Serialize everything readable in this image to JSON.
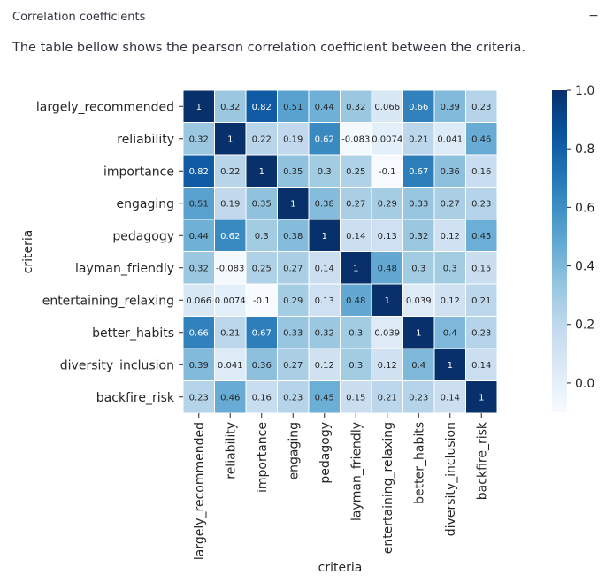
{
  "panel": {
    "title": "Correlation coefficients",
    "toggle_symbol": "−",
    "description": "The table bellow shows the pearson correlation coefficient between the criteria."
  },
  "chart_data": {
    "type": "heatmap",
    "title": "",
    "xlabel": "criteria",
    "ylabel": "criteria",
    "categories": [
      "largely_recommended",
      "reliability",
      "importance",
      "engaging",
      "pedagogy",
      "layman_friendly",
      "entertaining_relaxing",
      "better_habits",
      "diversity_inclusion",
      "backfire_risk"
    ],
    "values": [
      [
        1,
        0.32,
        0.82,
        0.51,
        0.44,
        0.32,
        0.066,
        0.66,
        0.39,
        0.23
      ],
      [
        0.32,
        1,
        0.22,
        0.19,
        0.62,
        -0.083,
        0.0074,
        0.21,
        0.041,
        0.46
      ],
      [
        0.82,
        0.22,
        1,
        0.35,
        0.3,
        0.25,
        -0.1,
        0.67,
        0.36,
        0.16
      ],
      [
        0.51,
        0.19,
        0.35,
        1,
        0.38,
        0.27,
        0.29,
        0.33,
        0.27,
        0.23
      ],
      [
        0.44,
        0.62,
        0.3,
        0.38,
        1,
        0.14,
        0.13,
        0.32,
        0.12,
        0.45
      ],
      [
        0.32,
        -0.083,
        0.25,
        0.27,
        0.14,
        1,
        0.48,
        0.3,
        0.3,
        0.15
      ],
      [
        0.066,
        0.0074,
        -0.1,
        0.29,
        0.13,
        0.48,
        1,
        0.039,
        0.12,
        0.21
      ],
      [
        0.66,
        0.21,
        0.67,
        0.33,
        0.32,
        0.3,
        0.039,
        1,
        0.4,
        0.23
      ],
      [
        0.39,
        0.041,
        0.36,
        0.27,
        0.12,
        0.3,
        0.12,
        0.4,
        1,
        0.14
      ],
      [
        0.23,
        0.46,
        0.16,
        0.23,
        0.45,
        0.15,
        0.21,
        0.23,
        0.14,
        1
      ]
    ],
    "cell_labels": [
      [
        "1",
        "0.32",
        "0.82",
        "0.51",
        "0.44",
        "0.32",
        "0.066",
        "0.66",
        "0.39",
        "0.23"
      ],
      [
        "0.32",
        "1",
        "0.22",
        "0.19",
        "0.62",
        "-0.083",
        "0.0074",
        "0.21",
        "0.041",
        "0.46"
      ],
      [
        "0.82",
        "0.22",
        "1",
        "0.35",
        "0.3",
        "0.25",
        "-0.1",
        "0.67",
        "0.36",
        "0.16"
      ],
      [
        "0.51",
        "0.19",
        "0.35",
        "1",
        "0.38",
        "0.27",
        "0.29",
        "0.33",
        "0.27",
        "0.23"
      ],
      [
        "0.44",
        "0.62",
        "0.3",
        "0.38",
        "1",
        "0.14",
        "0.13",
        "0.32",
        "0.12",
        "0.45"
      ],
      [
        "0.32",
        "-0.083",
        "0.25",
        "0.27",
        "0.14",
        "1",
        "0.48",
        "0.3",
        "0.3",
        "0.15"
      ],
      [
        "0.066",
        "0.0074",
        "-0.1",
        "0.29",
        "0.13",
        "0.48",
        "1",
        "0.039",
        "0.12",
        "0.21"
      ],
      [
        "0.66",
        "0.21",
        "0.67",
        "0.33",
        "0.32",
        "0.3",
        "0.039",
        "1",
        "0.4",
        "0.23"
      ],
      [
        "0.39",
        "0.041",
        "0.36",
        "0.27",
        "0.12",
        "0.3",
        "0.12",
        "0.4",
        "1",
        "0.14"
      ],
      [
        "0.23",
        "0.46",
        "0.16",
        "0.23",
        "0.45",
        "0.15",
        "0.21",
        "0.23",
        "0.14",
        "1"
      ]
    ],
    "colormap": "Blues",
    "colorbar": {
      "range": [
        -0.1,
        1.0
      ],
      "ticks": [
        0.0,
        0.2,
        0.4,
        0.6,
        0.8,
        1.0
      ],
      "tick_labels": [
        "0.0",
        "0.2",
        "0.4",
        "0.6",
        "0.8",
        "1.0"
      ]
    },
    "colors": {
      "low": "#f7fbff",
      "high": "#08306b",
      "cell_border": "#ffffff"
    }
  }
}
